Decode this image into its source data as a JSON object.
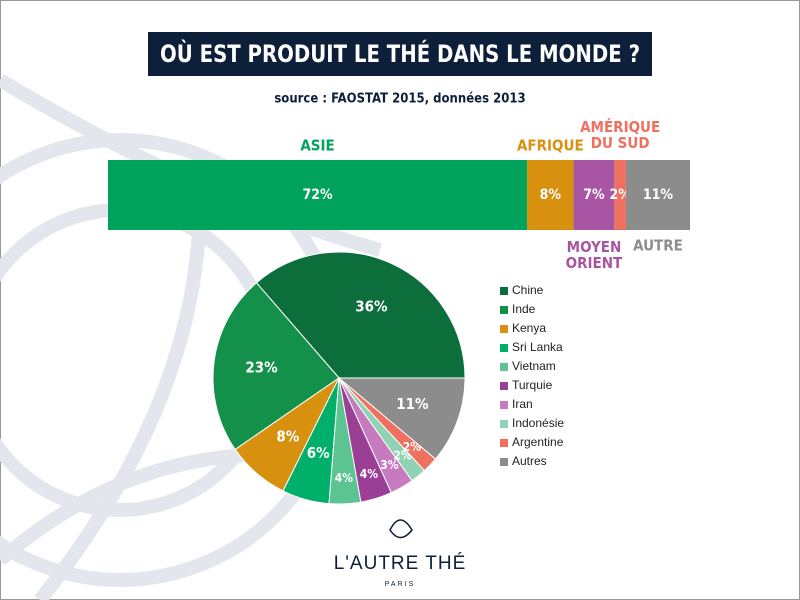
{
  "title": "OÙ EST PRODUIT LE THÉ DANS LE MONDE ?",
  "subtitle": "source : FAOSTAT 2015, données 2013",
  "chart_data": [
    {
      "type": "stacked-bar",
      "series": [
        {
          "name": "ASIE",
          "color": "#00a35b",
          "values": [
            72
          ],
          "value_labels": [
            "72%"
          ]
        },
        {
          "name": "AFRIQUE",
          "color": "#d8900f",
          "values": [
            8
          ],
          "value_labels": [
            "8%"
          ]
        },
        {
          "name": "MOYEN\nORIENT",
          "color": "#a855a3",
          "values": [
            7
          ],
          "value_labels": [
            "7%"
          ]
        },
        {
          "name": "AMÉRIQUE\nDU SUD",
          "color": "#f07060",
          "values": [
            2
          ],
          "value_labels": [
            "2%"
          ]
        },
        {
          "name": "AUTRE",
          "color": "#8c8c8c",
          "values": [
            11
          ],
          "value_labels": [
            "11%"
          ]
        }
      ]
    },
    {
      "type": "pie",
      "categories": [
        "Chine",
        "Inde",
        "Kenya",
        "Sri Lanka",
        "Vietnam",
        "Turquie",
        "Iran",
        "Indonésie",
        "Argentine",
        "Autres"
      ],
      "values": [
        36,
        23,
        8,
        6,
        4,
        4,
        3,
        2,
        2,
        11
      ],
      "value_labels": [
        "36%",
        "23%",
        "8%",
        "6%",
        "4%",
        "4%",
        "3%",
        "2%",
        "2%",
        "11%"
      ],
      "colors": [
        "#0b6e3b",
        "#13914a",
        "#d8900f",
        "#00b06a",
        "#5cc491",
        "#9b3e96",
        "#c77bbf",
        "#8fd3b3",
        "#f07060",
        "#8c8c8c"
      ]
    }
  ],
  "logo": {
    "name": "L'AUTRE THÉ",
    "place": "PARIS"
  }
}
